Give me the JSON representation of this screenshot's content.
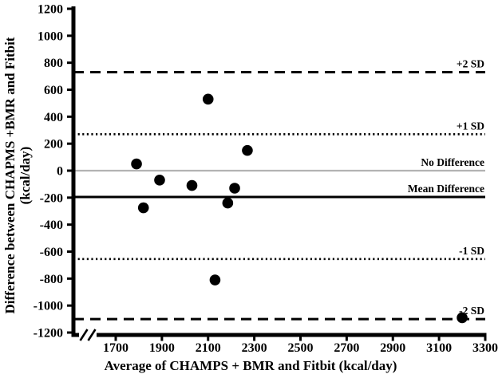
{
  "chart_data": {
    "type": "scatter",
    "title": "",
    "xlabel": "Average of CHAMPS + BMR and Fitbit (kcal/day)",
    "ylabel_line1": "Difference between CHAPMS +BMR and Fitbit",
    "ylabel_line2": "(kcal/day)",
    "xlim": [
      1700,
      3300
    ],
    "ylim": [
      -1200,
      1200
    ],
    "x_ticks": [
      1700,
      1900,
      2100,
      2300,
      2500,
      2700,
      2900,
      3100,
      3300
    ],
    "y_ticks": [
      -1200,
      -1000,
      -800,
      -600,
      -400,
      -200,
      0,
      200,
      400,
      600,
      800,
      1000,
      1200
    ],
    "x_axis_break": true,
    "grid": false,
    "legend": "none",
    "marker": {
      "shape": "circle",
      "color": "#000000",
      "radius_px": 6.8
    },
    "axis_color": "#000000",
    "background": "#ffffff",
    "points": [
      {
        "x": 1790,
        "y": 50
      },
      {
        "x": 1820,
        "y": -275
      },
      {
        "x": 1890,
        "y": -70
      },
      {
        "x": 2030,
        "y": -110
      },
      {
        "x": 2100,
        "y": 530
      },
      {
        "x": 2130,
        "y": -810
      },
      {
        "x": 2185,
        "y": -240
      },
      {
        "x": 2215,
        "y": -130
      },
      {
        "x": 2270,
        "y": 150
      },
      {
        "x": 3200,
        "y": -1090
      }
    ],
    "reference_lines": [
      {
        "label": "+2 SD",
        "value": 730,
        "style": "dashed",
        "color": "#000000"
      },
      {
        "label": "+1 SD",
        "value": 270,
        "style": "dotted",
        "color": "#000000"
      },
      {
        "label": "No Difference",
        "value": 0,
        "style": "solid",
        "color": "#b3b3b3"
      },
      {
        "label": "Mean Difference",
        "value": -195,
        "style": "solid",
        "color": "#000000"
      },
      {
        "label": "-1 SD",
        "value": -655,
        "style": "dotted",
        "color": "#000000"
      },
      {
        "label": "-2 SD",
        "value": -1100,
        "style": "dashed",
        "color": "#000000"
      }
    ]
  }
}
